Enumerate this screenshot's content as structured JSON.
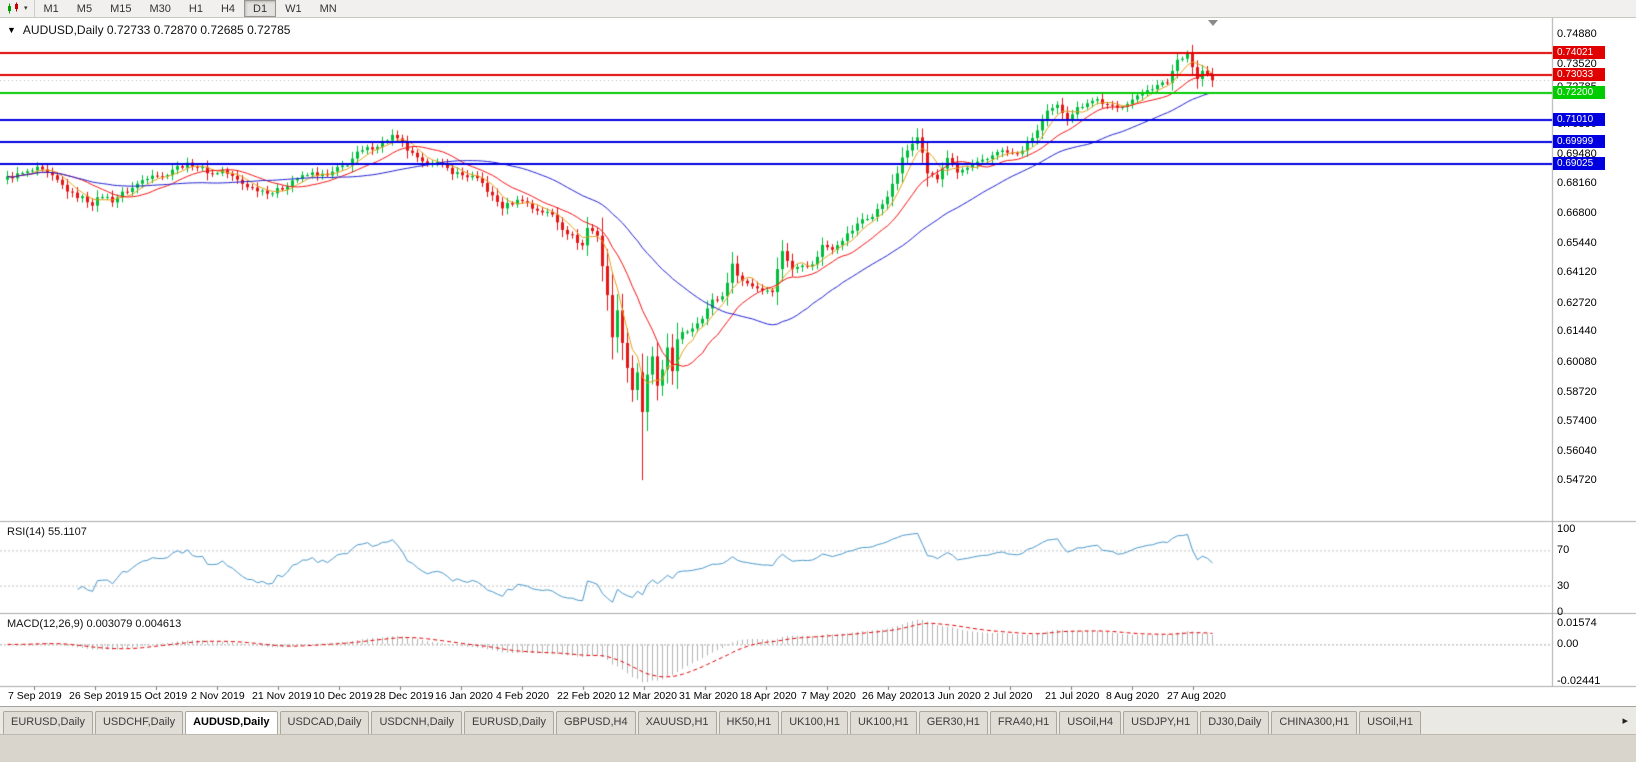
{
  "toolbar": {
    "dropdown_glyph": "▾",
    "timeframes": [
      "M1",
      "M5",
      "M15",
      "M30",
      "H1",
      "H4",
      "D1",
      "W1",
      "MN"
    ],
    "active_timeframe": "D1"
  },
  "chart": {
    "title_line": "AUDUSD,Daily  0.72733 0.72870 0.72685 0.72785",
    "dropdown_glyph": "▼"
  },
  "rsi": {
    "label": "RSI(14) 55.1107",
    "axis_labels": [
      "100",
      "70",
      "30",
      "0"
    ],
    "level_lines": [
      70,
      30
    ]
  },
  "macd": {
    "label": "MACD(12,26,9) 0.003079 0.004613",
    "axis_labels": [
      "0.01574",
      "0.00",
      "-0.02441"
    ]
  },
  "dates": [
    "7 Sep 2019",
    "26 Sep 2019",
    "15 Oct 2019",
    "2 Nov 2019",
    "21 Nov 2019",
    "10 Dec 2019",
    "28 Dec 2019",
    "16 Jan 2020",
    "4 Feb 2020",
    "22 Feb 2020",
    "12 Mar 2020",
    "31 Mar 2020",
    "18 Apr 2020",
    "7 May 2020",
    "26 May 2020",
    "13 Jun 2020",
    "2 Jul 2020",
    "21 Jul 2020",
    "8 Aug 2020",
    "27 Aug 2020"
  ],
  "tabs": {
    "items": [
      "EURUSD,Daily",
      "USDCHF,Daily",
      "AUDUSD,Daily",
      "USDCAD,Daily",
      "USDCNH,Daily",
      "EURUSD,Daily",
      "GBPUSD,H4",
      "XAUUSD,H1",
      "HK50,H1",
      "UK100,H1",
      "UK100,H1",
      "GER30,H1",
      "FRA40,H1",
      "USOil,H4",
      "USDJPY,H1",
      "DJ30,Daily",
      "CHINA300,H1",
      "USOil,H1"
    ],
    "active_index": 2,
    "scroll_right_glyph": "▸"
  },
  "chart_data": {
    "type": "candlestick",
    "symbol": "AUDUSD",
    "timeframe": "Daily",
    "ohlc_display": {
      "open": "0.72733",
      "high": "0.72870",
      "low": "0.72685",
      "close": "0.72785"
    },
    "current_price": 0.72785,
    "current_price_label": "0.72785",
    "y_axis_labels": [
      "0.74880",
      "0.73520",
      "0.72160",
      "0.70800",
      "0.69480",
      "0.68160",
      "0.66800",
      "0.65440",
      "0.64120",
      "0.62720",
      "0.61440",
      "0.60080",
      "0.58720",
      "0.57400",
      "0.56040",
      "0.54720"
    ],
    "price_range": [
      0.5292,
      0.7556
    ],
    "n_candles": 242,
    "noise_amplitude": 0.0011,
    "close_anchors": [
      [
        0,
        0.6838
      ],
      [
        2,
        0.6852
      ],
      [
        4,
        0.6862
      ],
      [
        6,
        0.6878
      ],
      [
        8,
        0.6856
      ],
      [
        10,
        0.6824
      ],
      [
        13,
        0.6762
      ],
      [
        15,
        0.6748
      ],
      [
        17,
        0.6722
      ],
      [
        19,
        0.6758
      ],
      [
        21,
        0.6736
      ],
      [
        23,
        0.6768
      ],
      [
        25,
        0.6792
      ],
      [
        27,
        0.6828
      ],
      [
        29,
        0.6858
      ],
      [
        31,
        0.6842
      ],
      [
        33,
        0.6878
      ],
      [
        35,
        0.6894
      ],
      [
        37,
        0.6898
      ],
      [
        39,
        0.6878
      ],
      [
        41,
        0.6856
      ],
      [
        43,
        0.6872
      ],
      [
        45,
        0.6842
      ],
      [
        47,
        0.6812
      ],
      [
        49,
        0.6792
      ],
      [
        51,
        0.6782
      ],
      [
        53,
        0.6772
      ],
      [
        55,
        0.6792
      ],
      [
        57,
        0.6828
      ],
      [
        59,
        0.6842
      ],
      [
        61,
        0.6858
      ],
      [
        64,
        0.6846
      ],
      [
        66,
        0.6878
      ],
      [
        68,
        0.6902
      ],
      [
        70,
        0.6948
      ],
      [
        72,
        0.6968
      ],
      [
        74,
        0.6986
      ],
      [
        76,
        0.7012
      ],
      [
        77,
        0.7028
      ],
      [
        79,
        0.6988
      ],
      [
        81,
        0.6942
      ],
      [
        83,
        0.6902
      ],
      [
        85,
        0.6916
      ],
      [
        87,
        0.6892
      ],
      [
        89,
        0.6866
      ],
      [
        91,
        0.685
      ],
      [
        93,
        0.6842
      ],
      [
        95,
        0.6812
      ],
      [
        97,
        0.6752
      ],
      [
        99,
        0.6706
      ],
      [
        101,
        0.6726
      ],
      [
        103,
        0.6742
      ],
      [
        105,
        0.6701
      ],
      [
        107,
        0.6686
      ],
      [
        109,
        0.6671
      ],
      [
        111,
        0.6612
      ],
      [
        113,
        0.6572
      ],
      [
        115,
        0.6532
      ],
      [
        116,
        0.6612
      ],
      [
        118,
        0.6582
      ],
      [
        120,
        0.6302
      ],
      [
        121,
        0.6128
      ],
      [
        122,
        0.6232
      ],
      [
        123,
        0.6102
      ],
      [
        124,
        0.5982
      ],
      [
        125,
        0.5882
      ],
      [
        126,
        0.5962
      ],
      [
        127,
        0.5772
      ],
      [
        128,
        0.5942
      ],
      [
        129,
        0.6032
      ],
      [
        130,
        0.5892
      ],
      [
        131,
        0.5962
      ],
      [
        132,
        0.6072
      ],
      [
        133,
        0.5972
      ],
      [
        134,
        0.6102
      ],
      [
        135,
        0.6132
      ],
      [
        137,
        0.6162
      ],
      [
        139,
        0.6212
      ],
      [
        141,
        0.6282
      ],
      [
        143,
        0.6302
      ],
      [
        145,
        0.6442
      ],
      [
        147,
        0.6372
      ],
      [
        149,
        0.6352
      ],
      [
        151,
        0.6332
      ],
      [
        153,
        0.6332
      ],
      [
        155,
        0.6512
      ],
      [
        157,
        0.6422
      ],
      [
        159,
        0.6452
      ],
      [
        161,
        0.6442
      ],
      [
        163,
        0.6532
      ],
      [
        165,
        0.6522
      ],
      [
        167,
        0.6562
      ],
      [
        169,
        0.6602
      ],
      [
        171,
        0.6652
      ],
      [
        173,
        0.6662
      ],
      [
        175,
        0.6722
      ],
      [
        177,
        0.6802
      ],
      [
        179,
        0.6922
      ],
      [
        181,
        0.7002
      ],
      [
        182,
        0.7032
      ],
      [
        184,
        0.6862
      ],
      [
        186,
        0.6832
      ],
      [
        188,
        0.6932
      ],
      [
        190,
        0.6862
      ],
      [
        192,
        0.6882
      ],
      [
        194,
        0.6902
      ],
      [
        196,
        0.6922
      ],
      [
        198,
        0.6962
      ],
      [
        200,
        0.6952
      ],
      [
        202,
        0.6942
      ],
      [
        204,
        0.6992
      ],
      [
        206,
        0.7052
      ],
      [
        208,
        0.7132
      ],
      [
        210,
        0.7162
      ],
      [
        212,
        0.7112
      ],
      [
        214,
        0.7152
      ],
      [
        216,
        0.7182
      ],
      [
        218,
        0.7192
      ],
      [
        220,
        0.7162
      ],
      [
        222,
        0.7152
      ],
      [
        224,
        0.7182
      ],
      [
        226,
        0.7202
      ],
      [
        228,
        0.7242
      ],
      [
        230,
        0.7252
      ],
      [
        232,
        0.7272
      ],
      [
        234,
        0.7372
      ],
      [
        236,
        0.7402
      ],
      [
        237,
        0.7342
      ],
      [
        238,
        0.7282
      ],
      [
        239,
        0.7322
      ],
      [
        240,
        0.7302
      ],
      [
        241,
        0.7279
      ]
    ],
    "special_wicks": {
      "127": {
        "low": 0.5472
      },
      "182": {
        "high": 0.7062
      },
      "236": {
        "high": 0.7413
      }
    },
    "candle_up_color": "#00BE3C",
    "candle_down_color": "#E41616",
    "moving_averages": [
      {
        "name": "SMA fast",
        "period": 5,
        "color": "#E6A020"
      },
      {
        "name": "SMA mid",
        "period": 13,
        "color": "#F21414"
      },
      {
        "name": "SMA slow",
        "period": 34,
        "color": "#2020D0"
      }
    ],
    "hlines": [
      {
        "price": 0.74021,
        "label": "0.74021",
        "color": "#E00000"
      },
      {
        "price": 0.73033,
        "label": "0.73033",
        "color": "#E00000"
      },
      {
        "price": 0.722,
        "label": "0.72200",
        "color": "#00CC00"
      },
      {
        "price": 0.7101,
        "label": "0.71010",
        "color": "#0000E0"
      },
      {
        "price": 0.69999,
        "label": "0.69999",
        "color": "#0000E0"
      },
      {
        "price": 0.69025,
        "label": "0.69025",
        "color": "#0000E0"
      }
    ],
    "rsi_color": "#4A97C9",
    "macd_hist_color": "#B4B4B4",
    "macd_signal_color": "#E00000"
  }
}
